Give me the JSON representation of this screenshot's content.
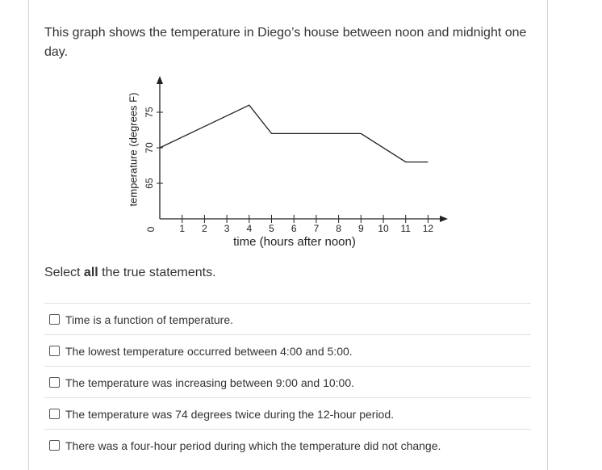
{
  "question": "This graph shows the temperature in Diego’s house between noon and midnight one day.",
  "chart_data": {
    "type": "line",
    "x_label": "time (hours after noon)",
    "y_label": "temperature (degrees F)",
    "x": [
      0,
      4,
      5,
      9,
      11,
      12
    ],
    "values": [
      70,
      76,
      72,
      72,
      68,
      68
    ],
    "color": "#222222",
    "xlim": [
      0,
      12.8
    ],
    "ylim": [
      60,
      80
    ],
    "xticks": [
      0,
      1,
      2,
      3,
      4,
      5,
      6,
      7,
      8,
      9,
      10,
      11,
      12
    ],
    "yticks": [
      65,
      70,
      75
    ]
  },
  "prompt": [
    "Select ",
    "all",
    " the true statements."
  ],
  "options": [
    "Time is a function of temperature.",
    "The lowest temperature occurred between 4:00 and 5:00.",
    "The temperature was increasing between 9:00 and 10:00.",
    "The temperature was 74 degrees twice during the 12-hour period.",
    "There was a four-hour period during which the temperature did not change."
  ]
}
